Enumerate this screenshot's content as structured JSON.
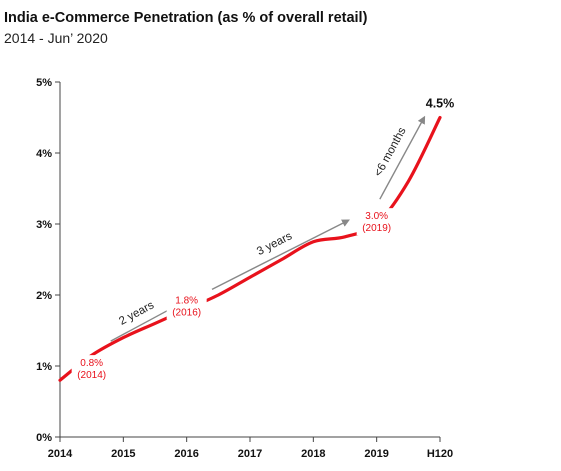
{
  "header": {
    "title": "India e-Commerce Penetration (as % of overall retail)",
    "subtitle": "2014 - Jun’ 2020"
  },
  "chart_data": {
    "type": "line",
    "title": "India e-Commerce Penetration (as % of overall retail)",
    "subtitle": "2014 - Jun’ 2020",
    "xlabel": "",
    "ylabel": "",
    "categories": [
      "2014",
      "2015",
      "2016",
      "2017",
      "2018",
      "2019",
      "H120"
    ],
    "ylim": [
      0,
      5
    ],
    "yticks": [
      "0%",
      "1%",
      "2%",
      "3%",
      "4%",
      "5%"
    ],
    "grid": false,
    "series": [
      {
        "color": "#e8121c",
        "x": [
          2014.0,
          2014.5,
          2015.0,
          2015.5,
          2016.0,
          2016.5,
          2017.0,
          2017.5,
          2018.0,
          2018.5,
          2019.0,
          2019.5,
          2020.0
        ],
        "values": [
          0.8,
          1.15,
          1.4,
          1.6,
          1.8,
          2.0,
          2.25,
          2.5,
          2.75,
          2.82,
          3.0,
          3.6,
          4.5
        ]
      }
    ],
    "data_labels": [
      {
        "value": "0.8%",
        "period": "(2014)"
      },
      {
        "value": "1.8%",
        "period": "(2016)"
      },
      {
        "value": "3.0%",
        "period": "(2019)"
      },
      {
        "value": "4.5%"
      }
    ],
    "annotations": [
      "2 years",
      "3 years",
      "<6 months"
    ]
  }
}
